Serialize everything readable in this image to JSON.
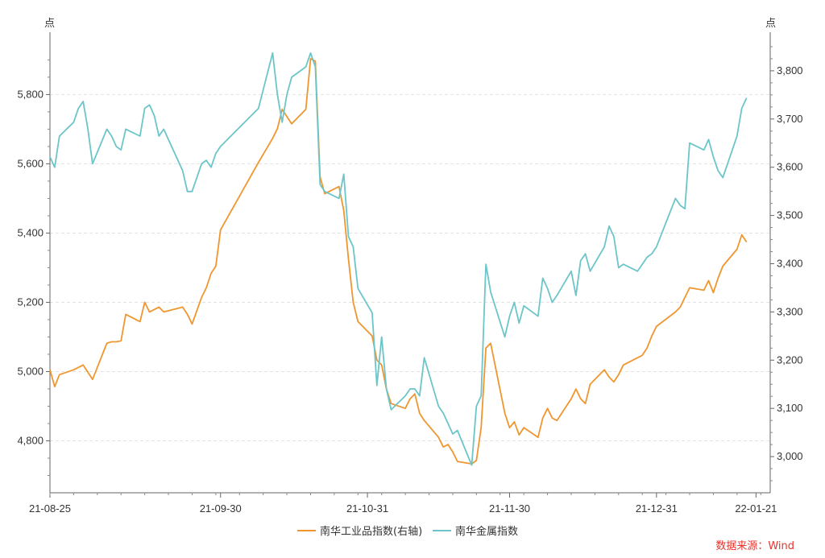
{
  "chart_data": {
    "type": "line",
    "left_axis": {
      "unit": "点",
      "ylim": [
        4650,
        5980
      ],
      "ticks": [
        4800,
        5000,
        5200,
        5400,
        5600,
        5800
      ],
      "tick_labels": [
        "4,800",
        "5,000",
        "5,200",
        "5,400",
        "5,600",
        "5,800"
      ]
    },
    "right_axis": {
      "unit": "点",
      "ylim": [
        2925,
        3880
      ],
      "ticks": [
        3000,
        3100,
        3200,
        3300,
        3400,
        3500,
        3600,
        3700,
        3800
      ],
      "tick_labels": [
        "3,000",
        "3,100",
        "3,200",
        "3,300",
        "3,400",
        "3,500",
        "3,600",
        "3,700",
        "3,800"
      ]
    },
    "x_range": [
      "2021-08-25",
      "2022-01-24"
    ],
    "x_ticks": [
      {
        "date": "2021-08-25",
        "label": "21-08-25"
      },
      {
        "date": "2021-09-30",
        "label": "21-09-30"
      },
      {
        "date": "2021-10-31",
        "label": "21-10-31"
      },
      {
        "date": "2021-11-30",
        "label": "21-11-30"
      },
      {
        "date": "2021-12-31",
        "label": "21-12-31"
      },
      {
        "date": "2022-01-21",
        "label": "22-01-21"
      }
    ],
    "series": [
      {
        "name": "南华工业品指数(右轴)",
        "axis": "right",
        "color": "#f0962e",
        "points": [
          [
            "2021-08-25",
            3180
          ],
          [
            "2021-08-26",
            3145
          ],
          [
            "2021-08-27",
            3170
          ],
          [
            "2021-08-30",
            3180
          ],
          [
            "2021-08-31",
            3185
          ],
          [
            "2021-09-01",
            3190
          ],
          [
            "2021-09-02",
            3175
          ],
          [
            "2021-09-03",
            3160
          ],
          [
            "2021-09-06",
            3235
          ],
          [
            "2021-09-07",
            3238
          ],
          [
            "2021-09-08",
            3238
          ],
          [
            "2021-09-09",
            3240
          ],
          [
            "2021-09-10",
            3295
          ],
          [
            "2021-09-13",
            3280
          ],
          [
            "2021-09-14",
            3320
          ],
          [
            "2021-09-15",
            3300
          ],
          [
            "2021-09-16",
            3305
          ],
          [
            "2021-09-17",
            3310
          ],
          [
            "2021-09-18",
            3300
          ],
          [
            "2021-09-22",
            3310
          ],
          [
            "2021-09-23",
            3295
          ],
          [
            "2021-09-24",
            3275
          ],
          [
            "2021-09-26",
            3330
          ],
          [
            "2021-09-27",
            3350
          ],
          [
            "2021-09-28",
            3380
          ],
          [
            "2021-09-29",
            3395
          ],
          [
            "2021-09-30",
            3470
          ],
          [
            "2021-10-08",
            3610
          ],
          [
            "2021-10-11",
            3660
          ],
          [
            "2021-10-12",
            3680
          ],
          [
            "2021-10-13",
            3720
          ],
          [
            "2021-10-14",
            3705
          ],
          [
            "2021-10-15",
            3690
          ],
          [
            "2021-10-18",
            3720
          ],
          [
            "2021-10-19",
            3825
          ],
          [
            "2021-10-20",
            3820
          ],
          [
            "2021-10-21",
            3580
          ],
          [
            "2021-10-22",
            3545
          ],
          [
            "2021-10-25",
            3560
          ],
          [
            "2021-10-26",
            3510
          ],
          [
            "2021-10-27",
            3410
          ],
          [
            "2021-10-28",
            3320
          ],
          [
            "2021-10-29",
            3280
          ],
          [
            "2021-11-01",
            3250
          ],
          [
            "2021-11-02",
            3200
          ],
          [
            "2021-11-03",
            3190
          ],
          [
            "2021-11-04",
            3140
          ],
          [
            "2021-11-05",
            3110
          ],
          [
            "2021-11-08",
            3100
          ],
          [
            "2021-11-09",
            3120
          ],
          [
            "2021-11-10",
            3130
          ],
          [
            "2021-11-11",
            3090
          ],
          [
            "2021-11-12",
            3075
          ],
          [
            "2021-11-15",
            3040
          ],
          [
            "2021-11-16",
            3020
          ],
          [
            "2021-11-17",
            3025
          ],
          [
            "2021-11-18",
            3010
          ],
          [
            "2021-11-19",
            2990
          ],
          [
            "2021-11-22",
            2985
          ],
          [
            "2021-11-23",
            2992
          ],
          [
            "2021-11-24",
            3060
          ],
          [
            "2021-11-25",
            3225
          ],
          [
            "2021-11-26",
            3235
          ],
          [
            "2021-11-29",
            3090
          ],
          [
            "2021-11-30",
            3060
          ],
          [
            "2021-12-01",
            3072
          ],
          [
            "2021-12-02",
            3045
          ],
          [
            "2021-12-03",
            3060
          ],
          [
            "2021-12-06",
            3040
          ],
          [
            "2021-12-07",
            3080
          ],
          [
            "2021-12-08",
            3100
          ],
          [
            "2021-12-09",
            3080
          ],
          [
            "2021-12-10",
            3075
          ],
          [
            "2021-12-13",
            3120
          ],
          [
            "2021-12-14",
            3140
          ],
          [
            "2021-12-15",
            3120
          ],
          [
            "2021-12-16",
            3110
          ],
          [
            "2021-12-17",
            3150
          ],
          [
            "2021-12-20",
            3180
          ],
          [
            "2021-12-21",
            3165
          ],
          [
            "2021-12-22",
            3155
          ],
          [
            "2021-12-23",
            3170
          ],
          [
            "2021-12-24",
            3190
          ],
          [
            "2021-12-27",
            3205
          ],
          [
            "2021-12-28",
            3210
          ],
          [
            "2021-12-29",
            3225
          ],
          [
            "2021-12-30",
            3250
          ],
          [
            "2021-12-31",
            3270
          ],
          [
            "2022-01-04",
            3300
          ],
          [
            "2022-01-05",
            3310
          ],
          [
            "2022-01-06",
            3330
          ],
          [
            "2022-01-07",
            3350
          ],
          [
            "2022-01-10",
            3345
          ],
          [
            "2022-01-11",
            3365
          ],
          [
            "2022-01-12",
            3340
          ],
          [
            "2022-01-13",
            3370
          ],
          [
            "2022-01-14",
            3395
          ],
          [
            "2022-01-17",
            3430
          ],
          [
            "2022-01-18",
            3460
          ],
          [
            "2022-01-19",
            3445
          ]
        ]
      },
      {
        "name": "南华金属指数",
        "axis": "left",
        "color": "#6cc5c8",
        "points": [
          [
            "2021-08-25",
            5620
          ],
          [
            "2021-08-26",
            5590
          ],
          [
            "2021-08-27",
            5680
          ],
          [
            "2021-08-30",
            5720
          ],
          [
            "2021-08-31",
            5760
          ],
          [
            "2021-09-01",
            5780
          ],
          [
            "2021-09-02",
            5700
          ],
          [
            "2021-09-03",
            5600
          ],
          [
            "2021-09-06",
            5700
          ],
          [
            "2021-09-07",
            5680
          ],
          [
            "2021-09-08",
            5650
          ],
          [
            "2021-09-09",
            5640
          ],
          [
            "2021-09-10",
            5700
          ],
          [
            "2021-09-13",
            5680
          ],
          [
            "2021-09-14",
            5760
          ],
          [
            "2021-09-15",
            5770
          ],
          [
            "2021-09-16",
            5740
          ],
          [
            "2021-09-17",
            5680
          ],
          [
            "2021-09-18",
            5700
          ],
          [
            "2021-09-22",
            5580
          ],
          [
            "2021-09-23",
            5520
          ],
          [
            "2021-09-24",
            5520
          ],
          [
            "2021-09-26",
            5600
          ],
          [
            "2021-09-27",
            5610
          ],
          [
            "2021-09-28",
            5590
          ],
          [
            "2021-09-29",
            5630
          ],
          [
            "2021-09-30",
            5650
          ],
          [
            "2021-10-08",
            5760
          ],
          [
            "2021-10-11",
            5920
          ],
          [
            "2021-10-12",
            5800
          ],
          [
            "2021-10-13",
            5720
          ],
          [
            "2021-10-14",
            5800
          ],
          [
            "2021-10-15",
            5850
          ],
          [
            "2021-10-18",
            5880
          ],
          [
            "2021-10-19",
            5920
          ],
          [
            "2021-10-20",
            5880
          ],
          [
            "2021-10-21",
            5540
          ],
          [
            "2021-10-22",
            5520
          ],
          [
            "2021-10-25",
            5500
          ],
          [
            "2021-10-26",
            5570
          ],
          [
            "2021-10-27",
            5390
          ],
          [
            "2021-10-28",
            5360
          ],
          [
            "2021-10-29",
            5240
          ],
          [
            "2021-11-01",
            5170
          ],
          [
            "2021-11-02",
            4960
          ],
          [
            "2021-11-03",
            5100
          ],
          [
            "2021-11-04",
            4950
          ],
          [
            "2021-11-05",
            4890
          ],
          [
            "2021-11-08",
            4930
          ],
          [
            "2021-11-09",
            4950
          ],
          [
            "2021-11-10",
            4950
          ],
          [
            "2021-11-11",
            4930
          ],
          [
            "2021-11-12",
            5040
          ],
          [
            "2021-11-15",
            4900
          ],
          [
            "2021-11-16",
            4880
          ],
          [
            "2021-11-17",
            4850
          ],
          [
            "2021-11-18",
            4820
          ],
          [
            "2021-11-19",
            4830
          ],
          [
            "2021-11-22",
            4730
          ],
          [
            "2021-11-23",
            4900
          ],
          [
            "2021-11-24",
            4930
          ],
          [
            "2021-11-25",
            5310
          ],
          [
            "2021-11-26",
            5230
          ],
          [
            "2021-11-29",
            5100
          ],
          [
            "2021-11-30",
            5160
          ],
          [
            "2021-12-01",
            5200
          ],
          [
            "2021-12-02",
            5140
          ],
          [
            "2021-12-03",
            5190
          ],
          [
            "2021-12-06",
            5160
          ],
          [
            "2021-12-07",
            5270
          ],
          [
            "2021-12-08",
            5240
          ],
          [
            "2021-12-09",
            5200
          ],
          [
            "2021-12-10",
            5220
          ],
          [
            "2021-12-13",
            5290
          ],
          [
            "2021-12-14",
            5220
          ],
          [
            "2021-12-15",
            5320
          ],
          [
            "2021-12-16",
            5340
          ],
          [
            "2021-12-17",
            5290
          ],
          [
            "2021-12-20",
            5360
          ],
          [
            "2021-12-21",
            5420
          ],
          [
            "2021-12-22",
            5390
          ],
          [
            "2021-12-23",
            5300
          ],
          [
            "2021-12-24",
            5310
          ],
          [
            "2021-12-27",
            5290
          ],
          [
            "2021-12-28",
            5310
          ],
          [
            "2021-12-29",
            5330
          ],
          [
            "2021-12-30",
            5340
          ],
          [
            "2021-12-31",
            5360
          ],
          [
            "2022-01-04",
            5500
          ],
          [
            "2022-01-05",
            5480
          ],
          [
            "2022-01-06",
            5470
          ],
          [
            "2022-01-07",
            5660
          ],
          [
            "2022-01-10",
            5640
          ],
          [
            "2022-01-11",
            5670
          ],
          [
            "2022-01-12",
            5620
          ],
          [
            "2022-01-13",
            5580
          ],
          [
            "2022-01-14",
            5560
          ],
          [
            "2022-01-17",
            5680
          ],
          [
            "2022-01-18",
            5760
          ],
          [
            "2022-01-19",
            5790
          ]
        ]
      }
    ],
    "grid": "horizontal-dashed",
    "legend": {
      "placement": "bottom-center",
      "items": [
        "南华工业品指数(右轴)",
        "南华金属指数"
      ]
    },
    "source": "数据来源：Wind"
  }
}
